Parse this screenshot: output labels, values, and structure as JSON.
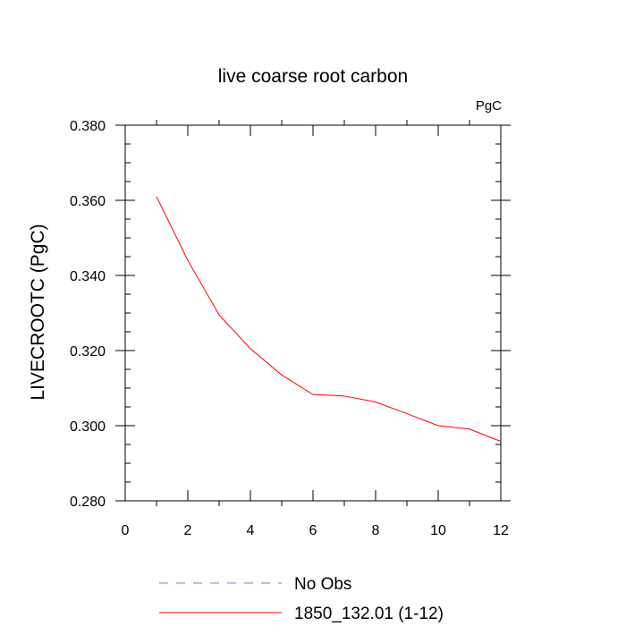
{
  "chart_data": {
    "type": "line",
    "title": "live coarse root carbon",
    "units": "PgC",
    "xlabel": "",
    "ylabel": "LIVECROOTC  (PgC)",
    "xlim": [
      0,
      12
    ],
    "ylim": [
      0.28,
      0.38
    ],
    "x_ticks": [
      0,
      2,
      4,
      6,
      8,
      10,
      12
    ],
    "x_tick_labels": [
      "0",
      "2",
      "4",
      "6",
      "8",
      "10",
      "12"
    ],
    "y_ticks": [
      0.28,
      0.3,
      0.32,
      0.34,
      0.36,
      0.38
    ],
    "y_tick_labels": [
      "0.280",
      "0.300",
      "0.320",
      "0.340",
      "0.360",
      "0.380"
    ],
    "grid": false,
    "legend_position": "bottom",
    "series": [
      {
        "name": "No Obs",
        "color": "#7777ff",
        "dash": "dashed",
        "x": [],
        "y": []
      },
      {
        "name": "1850_132.01 (1-12)",
        "color": "#ff0000",
        "dash": "solid",
        "x": [
          1,
          2,
          3,
          4,
          5,
          6,
          7,
          8,
          9,
          10,
          11,
          12
        ],
        "y": [
          0.361,
          0.344,
          0.3295,
          0.3205,
          0.3135,
          0.3083,
          0.3079,
          0.3063,
          0.3032,
          0.3,
          0.2991,
          0.2958
        ]
      }
    ]
  }
}
